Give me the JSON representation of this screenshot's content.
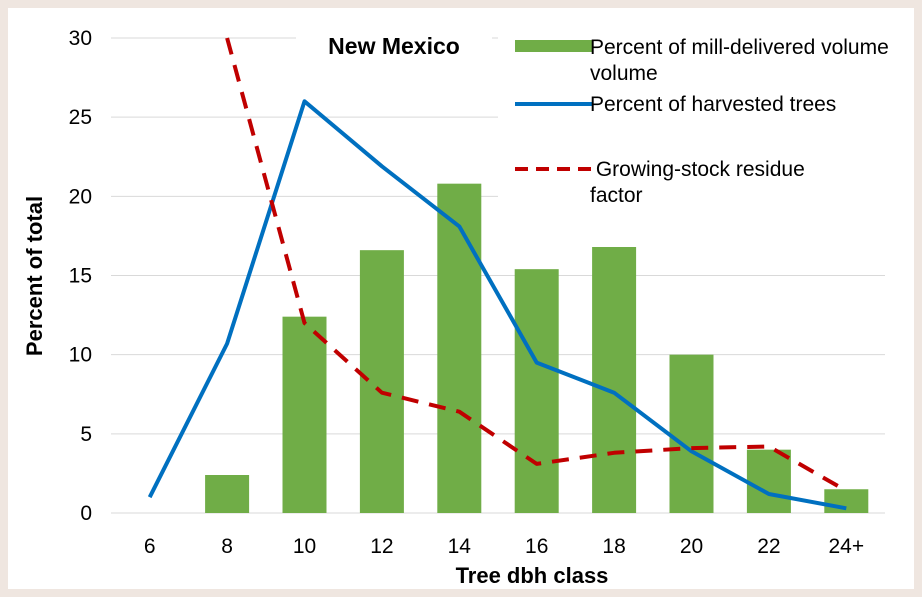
{
  "chart_data": {
    "type": "bar",
    "title": "New Mexico",
    "xlabel": "Tree dbh class",
    "ylabel": "Percent of total",
    "categories": [
      "6",
      "8",
      "10",
      "12",
      "14",
      "16",
      "18",
      "20",
      "22",
      "24+"
    ],
    "ylim": [
      0,
      30
    ],
    "yticks": [
      0,
      5,
      10,
      15,
      20,
      25,
      30
    ],
    "grid": true,
    "legend_position": "top-right",
    "series": [
      {
        "name": "Percent of mill-delivered volume",
        "type": "bar",
        "color": "#70ad47",
        "values": [
          null,
          2.4,
          12.4,
          16.6,
          20.8,
          15.4,
          16.8,
          10.0,
          4.0,
          1.5
        ]
      },
      {
        "name": "Percent of harvested trees",
        "type": "line",
        "color": "#0070c0",
        "values": [
          1.0,
          10.7,
          26.0,
          21.9,
          18.1,
          9.5,
          7.6,
          3.9,
          1.2,
          0.3
        ]
      },
      {
        "name": "Growing-stock residue factor",
        "type": "line",
        "style": "dashed",
        "color": "#c00000",
        "values": [
          null,
          30.0,
          12.0,
          7.6,
          6.4,
          3.1,
          3.8,
          4.1,
          4.2,
          1.4
        ],
        "clipped_at_top": true
      }
    ],
    "legend": {
      "items": [
        {
          "label_lines": [
            "Percent of mill-delivered volume",
            "volume"
          ]
        },
        {
          "label_lines": [
            "Percent of harvested trees"
          ]
        },
        {
          "label_lines": [
            " Growing-stock residue",
            "factor"
          ]
        }
      ]
    }
  }
}
